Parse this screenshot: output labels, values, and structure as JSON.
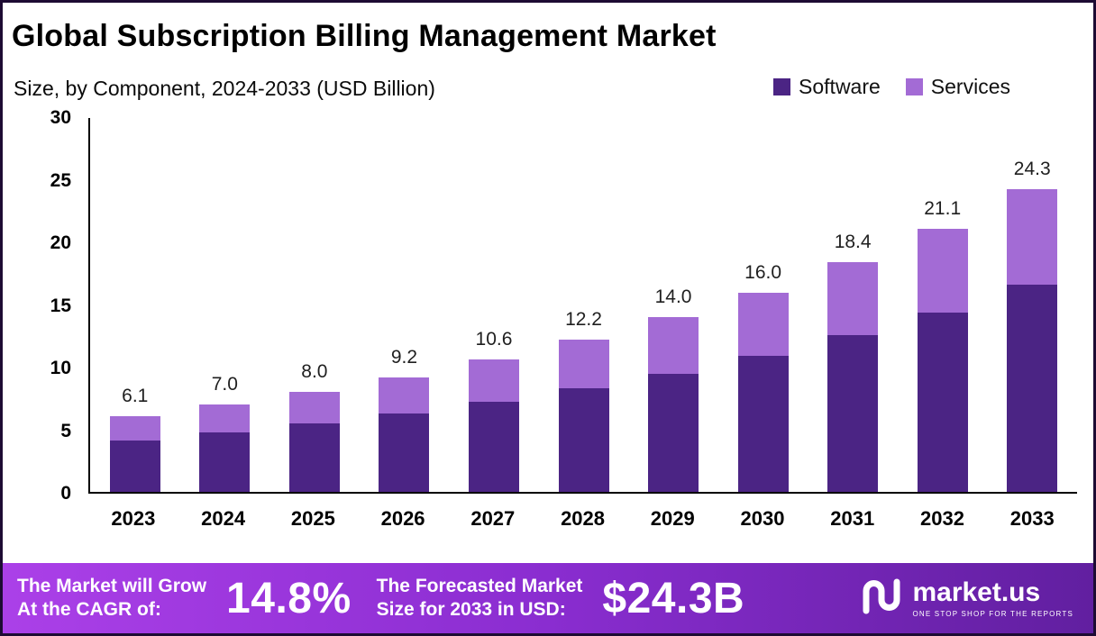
{
  "header": {
    "title": "Global Subscription Billing Management Market",
    "subtitle": "Size, by Component,  2024-2033 (USD Billion)"
  },
  "chart_data": {
    "type": "bar",
    "stacked": true,
    "title": "Global Subscription Billing Management Market Size, by Component, 2024-2033 (USD Billion)",
    "categories": [
      "2023",
      "2024",
      "2025",
      "2026",
      "2027",
      "2028",
      "2029",
      "2030",
      "2031",
      "2032",
      "2033"
    ],
    "series": [
      {
        "name": "Software",
        "color": "#4b2484",
        "values": [
          4.1,
          4.8,
          5.5,
          6.3,
          7.2,
          8.3,
          9.5,
          10.9,
          12.6,
          14.4,
          16.6
        ]
      },
      {
        "name": "Services",
        "color": "#a36bd5",
        "values": [
          2.0,
          2.2,
          2.5,
          2.9,
          3.4,
          3.9,
          4.5,
          5.1,
          5.8,
          6.7,
          7.7
        ]
      }
    ],
    "totals": [
      6.1,
      7.0,
      8.0,
      9.2,
      10.6,
      12.2,
      14.0,
      16.0,
      18.4,
      21.1,
      24.3
    ],
    "total_labels": [
      "6.1",
      "7.0",
      "8.0",
      "9.2",
      "10.6",
      "12.2",
      "14.0",
      "16.0",
      "18.4",
      "21.1",
      "24.3"
    ],
    "xlabel": "",
    "ylabel": "",
    "ylim": [
      0,
      30
    ],
    "yticks": [
      0,
      5,
      10,
      15,
      20,
      25,
      30
    ],
    "grid": false,
    "legend_position": "top-right"
  },
  "footer": {
    "cagr_line1": "The Market will Grow",
    "cagr_line2": "At the CAGR of:",
    "cagr_value": "14.8%",
    "forecast_line1": "The Forecasted Market",
    "forecast_line2": "Size for 2033 in USD:",
    "forecast_value": "$24.3B",
    "brand_name": "market.us",
    "brand_tagline": "ONE STOP SHOP FOR THE REPORTS"
  }
}
